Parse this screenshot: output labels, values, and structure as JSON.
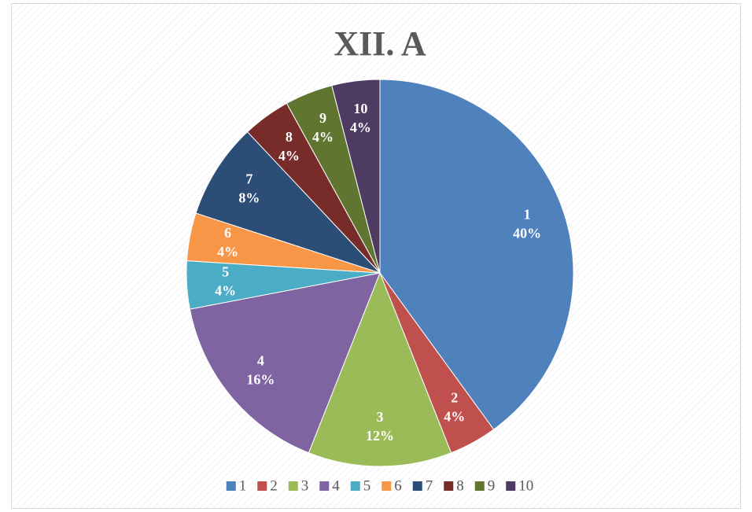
{
  "chart_data": {
    "type": "pie",
    "title": "XII. A",
    "categories": [
      "1",
      "2",
      "3",
      "4",
      "5",
      "6",
      "7",
      "8",
      "9",
      "10"
    ],
    "values": [
      40,
      4,
      12,
      16,
      4,
      4,
      8,
      4,
      4,
      4
    ],
    "value_labels": [
      "40%",
      "4%",
      "12%",
      "16%",
      "4%",
      "4%",
      "8%",
      "4%",
      "4%",
      "4%"
    ],
    "colors": [
      "#4f81bd",
      "#c0504d",
      "#9bbb59",
      "#8064a2",
      "#4bacc6",
      "#f79646",
      "#2c4d75",
      "#772c2a",
      "#5f7530",
      "#4d3b62"
    ],
    "legend": "bottom"
  }
}
